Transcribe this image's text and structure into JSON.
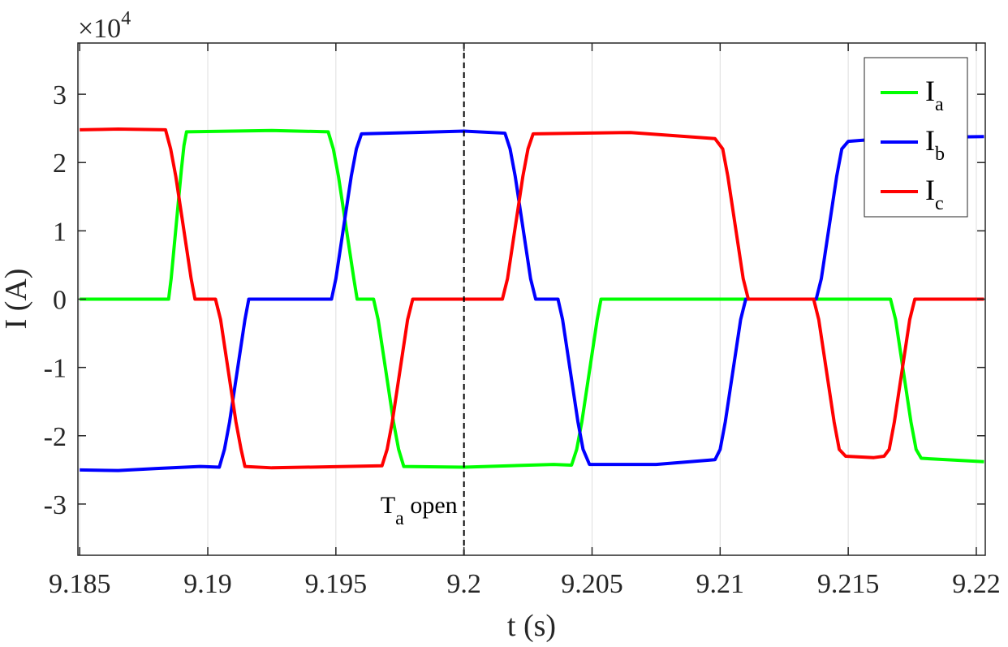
{
  "chart_data": {
    "type": "line",
    "xlabel": "t (s)",
    "ylabel": "I (A)",
    "y_exponent_label": "×10",
    "y_exponent_power": "4",
    "xlim": [
      9.18493,
      9.22035
    ],
    "ylim": [
      -3.75,
      3.75
    ],
    "y_scale": 10000,
    "grid": "vertical",
    "x_ticks": [
      9.185,
      9.19,
      9.195,
      9.2,
      9.205,
      9.21,
      9.215,
      9.22
    ],
    "x_tick_labels": [
      "9.185",
      "9.19",
      "9.195",
      "9.2",
      "9.205",
      "9.21",
      "9.215",
      "9.22"
    ],
    "y_ticks": [
      -3,
      -2,
      -1,
      0,
      1,
      2,
      3
    ],
    "y_tick_labels": [
      "-3",
      "-2",
      "-1",
      "0",
      "1",
      "2",
      "3"
    ],
    "legend_position": "top-right",
    "annotation": {
      "x": 9.2,
      "main": "T",
      "sub": "a",
      "rest": " open"
    },
    "series": [
      {
        "name": "I",
        "sub": "a",
        "color": "#00ff00",
        "points": [
          [
            9.185,
            0
          ],
          [
            9.18847,
            0
          ],
          [
            9.18857,
            0.3
          ],
          [
            9.18867,
            0.7
          ],
          [
            9.18877,
            1.1
          ],
          [
            9.18887,
            1.5
          ],
          [
            9.18897,
            1.9
          ],
          [
            9.18907,
            2.25
          ],
          [
            9.18917,
            2.45
          ],
          [
            9.1925,
            2.47
          ],
          [
            9.1947,
            2.45
          ],
          [
            9.1949,
            2.2
          ],
          [
            9.1951,
            1.8
          ],
          [
            9.1953,
            1.3
          ],
          [
            9.1955,
            0.8
          ],
          [
            9.1957,
            0.3
          ],
          [
            9.19583,
            0
          ],
          [
            9.19647,
            0
          ],
          [
            9.19665,
            -0.3
          ],
          [
            9.19685,
            -0.8
          ],
          [
            9.19705,
            -1.3
          ],
          [
            9.19725,
            -1.8
          ],
          [
            9.19745,
            -2.2
          ],
          [
            9.19765,
            -2.45
          ],
          [
            9.2,
            -2.46
          ],
          [
            9.2035,
            -2.42
          ],
          [
            9.2042,
            -2.43
          ],
          [
            9.2044,
            -2.2
          ],
          [
            9.2046,
            -1.8
          ],
          [
            9.2048,
            -1.3
          ],
          [
            9.205,
            -0.8
          ],
          [
            9.2052,
            -0.3
          ],
          [
            9.20535,
            0
          ],
          [
            9.21665,
            0
          ],
          [
            9.21685,
            -0.3
          ],
          [
            9.21705,
            -0.8
          ],
          [
            9.21725,
            -1.3
          ],
          [
            9.21745,
            -1.8
          ],
          [
            9.21765,
            -2.2
          ],
          [
            9.21785,
            -2.33
          ],
          [
            9.2203,
            -2.38
          ]
        ]
      },
      {
        "name": "I",
        "sub": "b",
        "color": "#0000ff",
        "points": [
          [
            9.185,
            -2.5
          ],
          [
            9.1865,
            -2.51
          ],
          [
            9.188,
            -2.48
          ],
          [
            9.1897,
            -2.45
          ],
          [
            9.19045,
            -2.46
          ],
          [
            9.19065,
            -2.2
          ],
          [
            9.19085,
            -1.8
          ],
          [
            9.19105,
            -1.3
          ],
          [
            9.19125,
            -0.8
          ],
          [
            9.19145,
            -0.3
          ],
          [
            9.1916,
            0
          ],
          [
            9.19483,
            0
          ],
          [
            9.195,
            0.3
          ],
          [
            9.1952,
            0.8
          ],
          [
            9.1954,
            1.3
          ],
          [
            9.1956,
            1.8
          ],
          [
            9.1958,
            2.2
          ],
          [
            9.196,
            2.42
          ],
          [
            9.198,
            2.44
          ],
          [
            9.2,
            2.46
          ],
          [
            9.2016,
            2.43
          ],
          [
            9.2018,
            2.2
          ],
          [
            9.202,
            1.8
          ],
          [
            9.2022,
            1.3
          ],
          [
            9.2024,
            0.8
          ],
          [
            9.2026,
            0.3
          ],
          [
            9.2028,
            0
          ],
          [
            9.20367,
            0
          ],
          [
            9.20385,
            -0.3
          ],
          [
            9.20405,
            -0.8
          ],
          [
            9.20425,
            -1.3
          ],
          [
            9.20445,
            -1.8
          ],
          [
            9.20465,
            -2.2
          ],
          [
            9.2049,
            -2.42
          ],
          [
            9.2075,
            -2.42
          ],
          [
            9.2098,
            -2.35
          ],
          [
            9.21,
            -2.2
          ],
          [
            9.2102,
            -1.8
          ],
          [
            9.2104,
            -1.3
          ],
          [
            9.2106,
            -0.8
          ],
          [
            9.2108,
            -0.3
          ],
          [
            9.211,
            0
          ],
          [
            9.21375,
            0
          ],
          [
            9.21395,
            0.3
          ],
          [
            9.21415,
            0.8
          ],
          [
            9.21435,
            1.3
          ],
          [
            9.21455,
            1.8
          ],
          [
            9.21475,
            2.2
          ],
          [
            9.215,
            2.31
          ],
          [
            9.2167,
            2.36
          ],
          [
            9.2203,
            2.38
          ]
        ]
      },
      {
        "name": "I",
        "sub": "c",
        "color": "#ff0000",
        "points": [
          [
            9.185,
            2.48
          ],
          [
            9.1865,
            2.49
          ],
          [
            9.18835,
            2.48
          ],
          [
            9.18855,
            2.2
          ],
          [
            9.18875,
            1.8
          ],
          [
            9.18895,
            1.3
          ],
          [
            9.18915,
            0.8
          ],
          [
            9.18935,
            0.3
          ],
          [
            9.1895,
            0
          ],
          [
            9.1903,
            0
          ],
          [
            9.1905,
            -0.3
          ],
          [
            9.1907,
            -0.8
          ],
          [
            9.1909,
            -1.3
          ],
          [
            9.1911,
            -1.8
          ],
          [
            9.1913,
            -2.2
          ],
          [
            9.19145,
            -2.45
          ],
          [
            9.1925,
            -2.47
          ],
          [
            9.1968,
            -2.44
          ],
          [
            9.197,
            -2.2
          ],
          [
            9.1972,
            -1.8
          ],
          [
            9.1974,
            -1.3
          ],
          [
            9.1976,
            -0.8
          ],
          [
            9.1978,
            -0.3
          ],
          [
            9.198,
            0
          ],
          [
            9.2015,
            0
          ],
          [
            9.2017,
            0.3
          ],
          [
            9.2019,
            0.8
          ],
          [
            9.2021,
            1.3
          ],
          [
            9.2023,
            1.8
          ],
          [
            9.2025,
            2.2
          ],
          [
            9.2027,
            2.42
          ],
          [
            9.2065,
            2.44
          ],
          [
            9.2098,
            2.35
          ],
          [
            9.2101,
            2.2
          ],
          [
            9.2103,
            1.8
          ],
          [
            9.2105,
            1.3
          ],
          [
            9.2107,
            0.8
          ],
          [
            9.2109,
            0.3
          ],
          [
            9.2111,
            0
          ],
          [
            9.21365,
            0
          ],
          [
            9.21385,
            -0.3
          ],
          [
            9.21405,
            -0.8
          ],
          [
            9.21425,
            -1.3
          ],
          [
            9.21445,
            -1.8
          ],
          [
            9.21465,
            -2.2
          ],
          [
            9.2149,
            -2.3
          ],
          [
            9.216,
            -2.32
          ],
          [
            9.2164,
            -2.3
          ],
          [
            9.2166,
            -2.2
          ],
          [
            9.2168,
            -1.8
          ],
          [
            9.217,
            -1.3
          ],
          [
            9.2172,
            -0.8
          ],
          [
            9.2174,
            -0.3
          ],
          [
            9.2176,
            0
          ],
          [
            9.2203,
            0
          ]
        ]
      }
    ]
  }
}
